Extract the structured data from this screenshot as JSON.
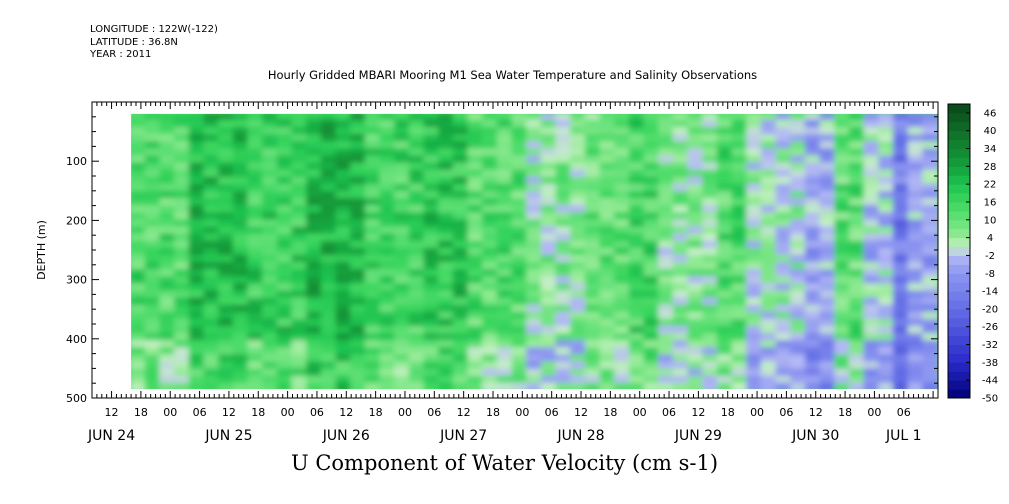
{
  "header": {
    "longitude": "LONGITUDE : 122W(-122)",
    "latitude": "LATITUDE : 36.8N",
    "year": "YEAR : 2011"
  },
  "chart_data": {
    "type": "heatmap",
    "title": "Hourly Gridded MBARI Mooring M1 Sea Water Temperature and Salinity Observations",
    "xlabel": "U Component of Water Velocity (cm s-1)",
    "ylabel": "DEPTH (m)",
    "x_axis": {
      "unit": "hours from 2011-06-24 00:00",
      "range": [
        8,
        181
      ],
      "hour_ticks": [
        {
          "h": 12,
          "label": "12"
        },
        {
          "h": 18,
          "label": "18"
        },
        {
          "h": 24,
          "label": "00"
        },
        {
          "h": 30,
          "label": "06"
        },
        {
          "h": 36,
          "label": "12"
        },
        {
          "h": 42,
          "label": "18"
        },
        {
          "h": 48,
          "label": "00"
        },
        {
          "h": 54,
          "label": "06"
        },
        {
          "h": 60,
          "label": "12"
        },
        {
          "h": 66,
          "label": "18"
        },
        {
          "h": 72,
          "label": "00"
        },
        {
          "h": 78,
          "label": "06"
        },
        {
          "h": 84,
          "label": "12"
        },
        {
          "h": 90,
          "label": "18"
        },
        {
          "h": 96,
          "label": "00"
        },
        {
          "h": 102,
          "label": "06"
        },
        {
          "h": 108,
          "label": "12"
        },
        {
          "h": 114,
          "label": "18"
        },
        {
          "h": 120,
          "label": "00"
        },
        {
          "h": 126,
          "label": "06"
        },
        {
          "h": 132,
          "label": "12"
        },
        {
          "h": 138,
          "label": "18"
        },
        {
          "h": 144,
          "label": "00"
        },
        {
          "h": 150,
          "label": "06"
        },
        {
          "h": 156,
          "label": "12"
        },
        {
          "h": 162,
          "label": "18"
        },
        {
          "h": 168,
          "label": "00"
        },
        {
          "h": 174,
          "label": "06"
        }
      ],
      "day_labels": [
        {
          "h": 12,
          "label": "JUN 24"
        },
        {
          "h": 36,
          "label": "JUN 25"
        },
        {
          "h": 60,
          "label": "JUN 26"
        },
        {
          "h": 84,
          "label": "JUN 27"
        },
        {
          "h": 108,
          "label": "JUN 28"
        },
        {
          "h": 132,
          "label": "JUN 29"
        },
        {
          "h": 156,
          "label": "JUN 30"
        },
        {
          "h": 174,
          "label": "JUL 1"
        }
      ]
    },
    "y_axis": {
      "range": [
        0,
        500
      ],
      "reversed": true,
      "ticks": [
        {
          "v": 100,
          "label": "100"
        },
        {
          "v": 200,
          "label": "200"
        },
        {
          "v": 300,
          "label": "300"
        },
        {
          "v": 400,
          "label": "400"
        },
        {
          "v": 500,
          "label": "500"
        }
      ]
    },
    "data_extent": {
      "hour_start": 16,
      "hour_end": 181,
      "depth_top": 20,
      "depth_bottom": 485
    },
    "colorbar": {
      "labels": [
        "46",
        "40",
        "34",
        "28",
        "22",
        "16",
        "10",
        "4",
        "-2",
        "-8",
        "-14",
        "-20",
        "-26",
        "-32",
        "-38",
        "-44",
        "-50"
      ],
      "min": -50,
      "max": 49,
      "step": 3
    },
    "regions": [
      {
        "h0": 16,
        "h1": 28,
        "v": 14
      },
      {
        "h0": 28,
        "h1": 40,
        "v": 22
      },
      {
        "h0": 40,
        "h1": 52,
        "v": 18
      },
      {
        "h0": 52,
        "h1": 64,
        "v": 24
      },
      {
        "h0": 64,
        "h1": 76,
        "v": 16
      },
      {
        "h0": 76,
        "h1": 84,
        "v": 20
      },
      {
        "h0": 84,
        "h1": 96,
        "v": 13
      },
      {
        "h0": 96,
        "h1": 100,
        "v": 4
      },
      {
        "h0": 100,
        "h1": 108,
        "v": 6
      },
      {
        "h0": 108,
        "h1": 118,
        "v": 11
      },
      {
        "h0": 118,
        "h1": 124,
        "v": 16
      },
      {
        "h0": 124,
        "h1": 136,
        "v": 6
      },
      {
        "h0": 136,
        "h1": 142,
        "v": 14
      },
      {
        "h0": 142,
        "h1": 152,
        "v": 2
      },
      {
        "h0": 152,
        "h1": 160,
        "v": -6
      },
      {
        "h0": 160,
        "h1": 164,
        "v": 12
      },
      {
        "h0": 164,
        "h1": 170,
        "v": -2
      },
      {
        "h0": 170,
        "h1": 174,
        "v": -16
      },
      {
        "h0": 174,
        "h1": 181,
        "v": -6
      }
    ],
    "legend": "right colorbar",
    "grid": false
  }
}
